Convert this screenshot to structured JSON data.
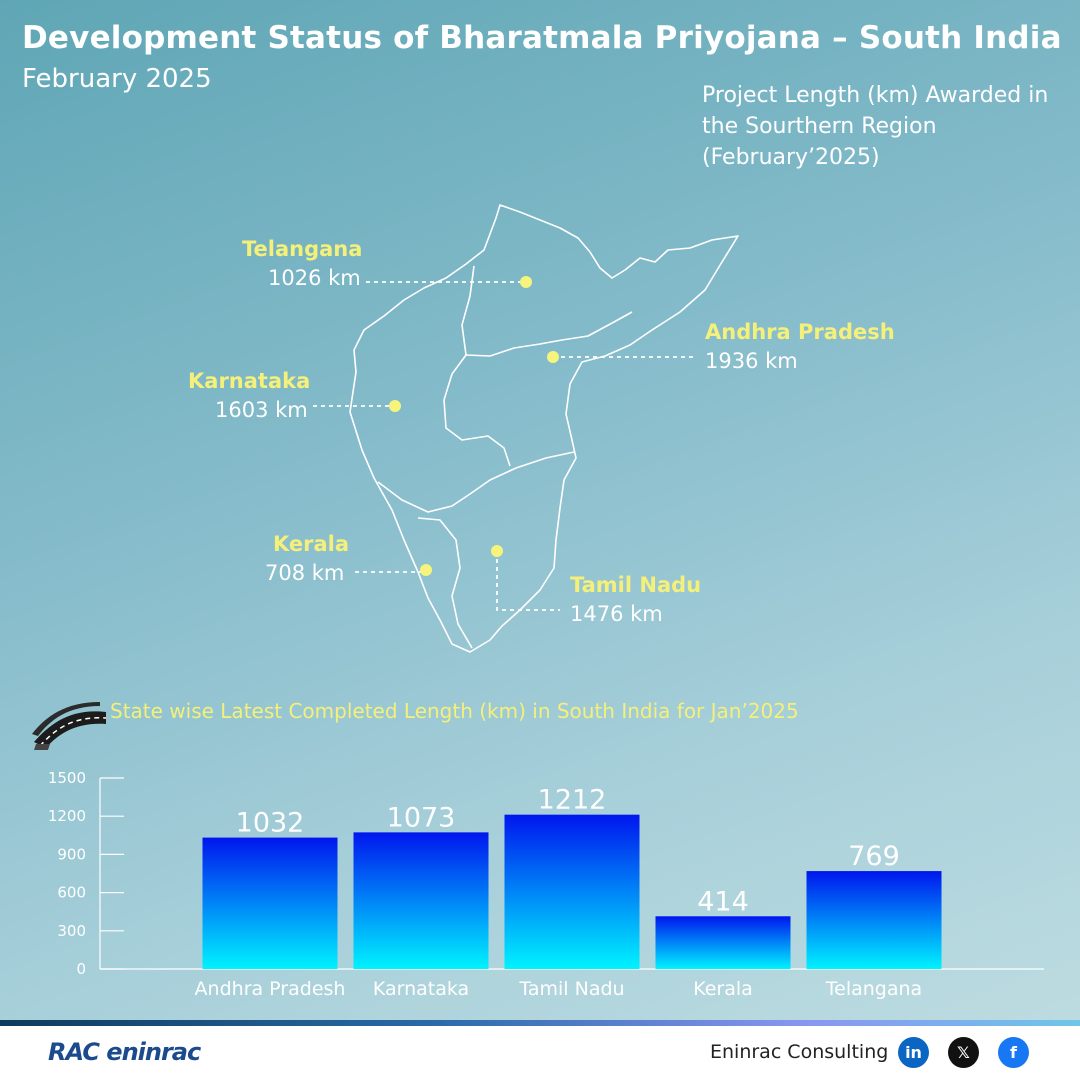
{
  "header": {
    "title": "Development Status of Bharatmala Priyojana – South India",
    "subtitle": "February 2025"
  },
  "map": {
    "caption": "Project  Length (km) Awarded in the Sourthern Region (February’2025)",
    "states": {
      "telangana": {
        "name": "Telangana",
        "value": "1026 km"
      },
      "andhra_pradesh": {
        "name": "Andhra Pradesh",
        "value": "1936 km"
      },
      "karnataka": {
        "name": "Karnataka",
        "value": "1603 km"
      },
      "kerala": {
        "name": "Kerala",
        "value": "708 km"
      },
      "tamil_nadu": {
        "name": "Tamil Nadu",
        "value": "1476 km"
      }
    }
  },
  "chart_data": {
    "type": "bar",
    "title": "State wise Latest Completed Length (km) in South India for Jan’2025",
    "categories": [
      "Andhra Pradesh",
      "Karnataka",
      "Tamil Nadu",
      "Kerala",
      "Telangana"
    ],
    "values": [
      1032,
      1073,
      1212,
      414,
      769
    ],
    "ylim": [
      0,
      1500
    ],
    "yticks": [
      0,
      300,
      600,
      900,
      1200,
      1500
    ],
    "grid": false,
    "bar_gradient": [
      "#0016ee",
      "#00f3ff"
    ]
  },
  "footer": {
    "logo_text": "RAC eninrac",
    "company": "Eninrac Consulting",
    "social": [
      {
        "icon": "linkedin-icon",
        "glyph": "in",
        "color": "#0a66c2"
      },
      {
        "icon": "x-icon",
        "glyph": "𝕏",
        "color": "#111111"
      },
      {
        "icon": "facebook-icon",
        "glyph": "f",
        "color": "#1877f2"
      }
    ]
  }
}
